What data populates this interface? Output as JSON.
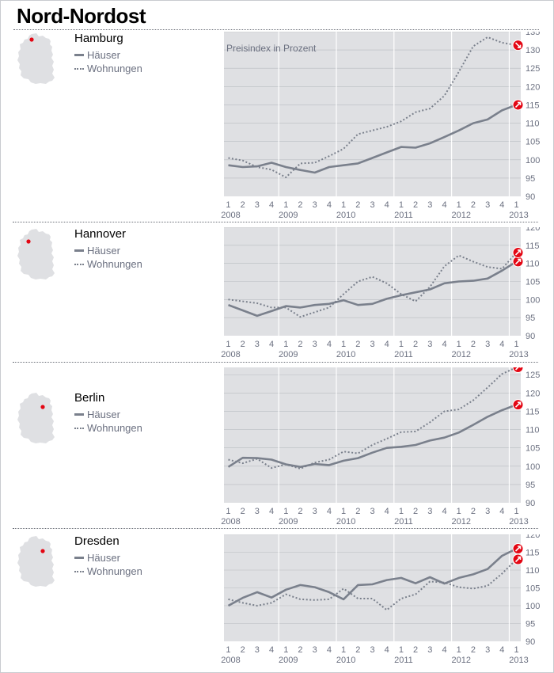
{
  "title": "Nord-Nordost",
  "legend": {
    "haeuser": "Häuser",
    "wohnungen": "Wohnungen"
  },
  "chart_note": "Preisindex in Prozent",
  "colors": {
    "plot_bg": "#dfe0e3",
    "line": "#7a808c",
    "marker": "#e30613",
    "text": "#6b7080"
  },
  "icons": {
    "trend_marker": "red-arrow-circle-icon",
    "map": "germany-map-icon"
  },
  "chart_data": [
    {
      "type": "line",
      "title": "Hamburg",
      "ylabel": "Preisindex in Prozent",
      "ylim": [
        90,
        135
      ],
      "yticks": [
        90,
        95,
        100,
        105,
        110,
        115,
        120,
        125,
        130,
        135
      ],
      "x_ticks": [
        "1",
        "2",
        "3",
        "4",
        "1",
        "2",
        "3",
        "4",
        "1",
        "2",
        "3",
        "4",
        "1",
        "2",
        "3",
        "4",
        "1",
        "2",
        "3",
        "4",
        "1"
      ],
      "years": [
        "2008",
        "2009",
        "2010",
        "2011",
        "2012",
        "2013"
      ],
      "series": [
        {
          "name": "Häuser",
          "style": "solid",
          "values": [
            98.5,
            98.0,
            98.2,
            99.2,
            98.0,
            97.2,
            96.5,
            98.0,
            98.5,
            99.0,
            100.5,
            102.0,
            103.5,
            103.3,
            104.5,
            106.2,
            108.0,
            110.0,
            111.0,
            113.5,
            115.0
          ]
        },
        {
          "name": "Wohnungen",
          "style": "dotted",
          "values": [
            100.5,
            99.8,
            98.0,
            97.3,
            95.2,
            99.0,
            99.2,
            101.0,
            103.0,
            107.0,
            108.0,
            109.0,
            110.5,
            113.0,
            114.0,
            117.5,
            124.0,
            131.0,
            133.5,
            132.0,
            131.3
          ]
        }
      ]
    },
    {
      "type": "line",
      "title": "Hannover",
      "ylim": [
        90,
        120
      ],
      "yticks": [
        90,
        95,
        100,
        105,
        110,
        115,
        120
      ],
      "x_ticks": [
        "1",
        "2",
        "3",
        "4",
        "1",
        "2",
        "3",
        "4",
        "1",
        "2",
        "3",
        "4",
        "1",
        "2",
        "3",
        "4",
        "1",
        "2",
        "3",
        "4",
        "1"
      ],
      "years": [
        "2008",
        "2009",
        "2010",
        "2011",
        "2012",
        "2013"
      ],
      "series": [
        {
          "name": "Häuser",
          "style": "solid",
          "values": [
            98.5,
            97.0,
            95.5,
            96.8,
            98.2,
            97.8,
            98.5,
            98.8,
            99.8,
            98.5,
            98.8,
            100.2,
            101.2,
            102.0,
            102.8,
            104.5,
            105.0,
            105.2,
            105.8,
            108.0,
            110.5
          ]
        },
        {
          "name": "Wohnungen",
          "style": "dotted",
          "values": [
            100.0,
            99.5,
            99.0,
            97.8,
            97.8,
            95.2,
            96.5,
            97.8,
            101.5,
            105.0,
            106.3,
            104.5,
            101.5,
            99.5,
            103.5,
            109.2,
            112.2,
            110.5,
            109.0,
            108.5,
            113.0
          ]
        }
      ]
    },
    {
      "type": "line",
      "title": "Berlin",
      "ylim": [
        90,
        127
      ],
      "yticks": [
        90,
        95,
        100,
        105,
        110,
        115,
        120,
        125
      ],
      "x_ticks": [
        "1",
        "2",
        "3",
        "4",
        "1",
        "2",
        "3",
        "4",
        "1",
        "2",
        "3",
        "4",
        "1",
        "2",
        "3",
        "4",
        "1",
        "2",
        "3",
        "4",
        "1"
      ],
      "years": [
        "2008",
        "2009",
        "2010",
        "2011",
        "2012",
        "2013"
      ],
      "series": [
        {
          "name": "Häuser",
          "style": "solid",
          "values": [
            99.8,
            102.3,
            102.2,
            101.8,
            100.5,
            99.8,
            100.6,
            100.3,
            101.5,
            102.2,
            103.7,
            105.0,
            105.3,
            105.8,
            107.0,
            107.8,
            109.2,
            111.3,
            113.5,
            115.3,
            116.8
          ]
        },
        {
          "name": "Wohnungen",
          "style": "dotted",
          "values": [
            101.8,
            100.8,
            102.0,
            99.5,
            100.5,
            99.3,
            101.0,
            101.8,
            104.0,
            103.5,
            105.8,
            107.5,
            109.3,
            109.5,
            112.0,
            115.0,
            115.5,
            118.0,
            121.5,
            125.2,
            127.0
          ]
        }
      ]
    },
    {
      "type": "line",
      "title": "Dresden",
      "ylim": [
        90,
        120
      ],
      "yticks": [
        90,
        95,
        100,
        105,
        110,
        115,
        120
      ],
      "x_ticks": [
        "1",
        "2",
        "3",
        "4",
        "1",
        "2",
        "3",
        "4",
        "1",
        "2",
        "3",
        "4",
        "1",
        "2",
        "3",
        "4",
        "1",
        "2",
        "3",
        "4",
        "1"
      ],
      "years": [
        "2008",
        "2009",
        "2010",
        "2011",
        "2012",
        "2013"
      ],
      "series": [
        {
          "name": "Häuser",
          "style": "solid",
          "values": [
            100.0,
            102.2,
            103.8,
            102.3,
            104.5,
            105.8,
            105.2,
            103.8,
            101.8,
            105.8,
            106.0,
            107.2,
            107.8,
            106.3,
            108.0,
            106.2,
            107.8,
            108.8,
            110.3,
            114.0,
            116.0
          ]
        },
        {
          "name": "Wohnungen",
          "style": "dotted",
          "values": [
            101.8,
            100.8,
            100.0,
            100.8,
            103.2,
            101.8,
            101.6,
            101.8,
            104.8,
            102.0,
            102.0,
            98.8,
            102.0,
            103.2,
            106.8,
            106.5,
            105.2,
            104.8,
            105.6,
            109.0,
            113.0
          ]
        }
      ]
    }
  ]
}
